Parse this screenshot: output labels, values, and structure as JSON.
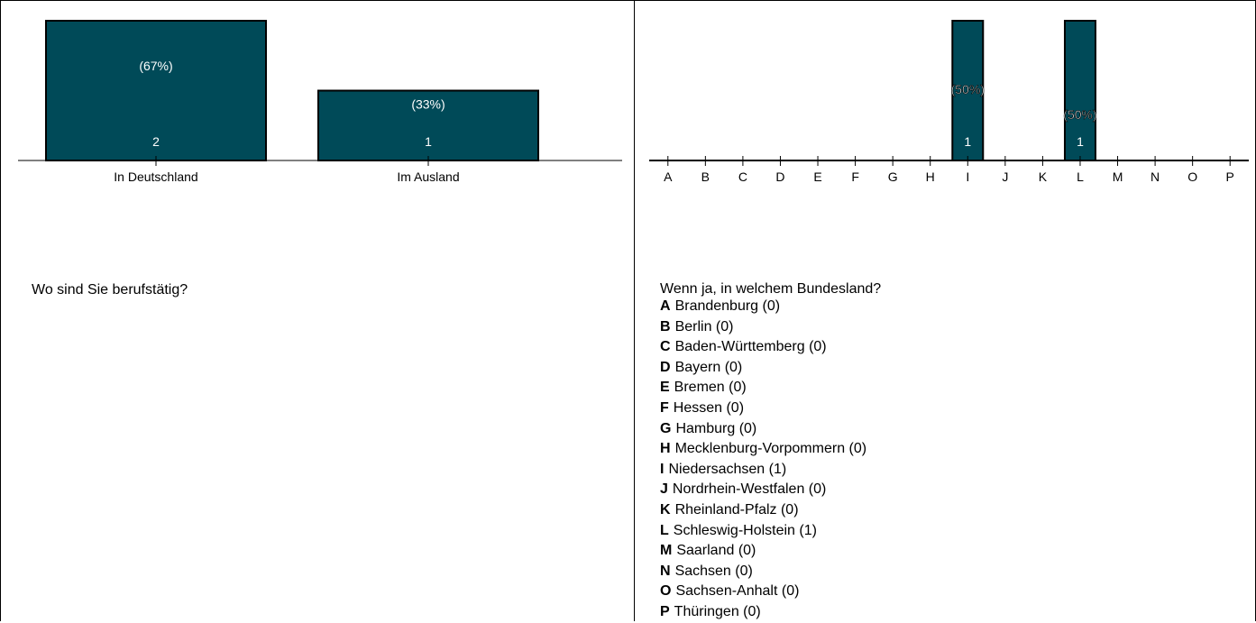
{
  "chart_data": [
    {
      "type": "bar",
      "title": "Wo sind Sie berufstätig?",
      "categories": [
        "In Deutschland",
        "Im Ausland"
      ],
      "values": [
        2,
        1
      ],
      "percent_labels": [
        "(67%)",
        "(33%)"
      ],
      "ylim": [
        0,
        2
      ],
      "grid": false,
      "bar_color": "#004a58"
    },
    {
      "type": "bar",
      "title": "Wenn ja, in welchem Bundesland?",
      "categories": [
        "A",
        "B",
        "C",
        "D",
        "E",
        "F",
        "G",
        "H",
        "I",
        "J",
        "K",
        "L",
        "M",
        "N",
        "O",
        "P"
      ],
      "values": [
        0,
        0,
        0,
        0,
        0,
        0,
        0,
        0,
        1,
        0,
        0,
        1,
        0,
        0,
        0,
        0
      ],
      "percent_labels": [
        "",
        "",
        "",
        "",
        "",
        "",
        "",
        "",
        "(50%)",
        "",
        "",
        "(50%)",
        "",
        "",
        "",
        ""
      ],
      "ylim": [
        0,
        1
      ],
      "grid": false,
      "bar_color": "#004a58",
      "legend": [
        {
          "key": "A",
          "text": "Brandenburg (0)"
        },
        {
          "key": "B",
          "text": "Berlin (0)"
        },
        {
          "key": "C",
          "text": "Baden-Württemberg (0)"
        },
        {
          "key": "D",
          "text": "Bayern (0)"
        },
        {
          "key": "E",
          "text": "Bremen (0)"
        },
        {
          "key": "F",
          "text": "Hessen (0)"
        },
        {
          "key": "G",
          "text": "Hamburg (0)"
        },
        {
          "key": "H",
          "text": "Mecklenburg-Vorpommern (0)"
        },
        {
          "key": "I",
          "text": "Niedersachsen (1)"
        },
        {
          "key": "J",
          "text": "Nordrhein-Westfalen (0)"
        },
        {
          "key": "K",
          "text": "Rheinland-Pfalz (0)"
        },
        {
          "key": "L",
          "text": "Schleswig-Holstein (1)"
        },
        {
          "key": "M",
          "text": "Saarland (0)"
        },
        {
          "key": "N",
          "text": "Sachsen (0)"
        },
        {
          "key": "O",
          "text": "Sachsen-Anhalt (0)"
        },
        {
          "key": "P",
          "text": "Thüringen (0)"
        }
      ]
    }
  ]
}
